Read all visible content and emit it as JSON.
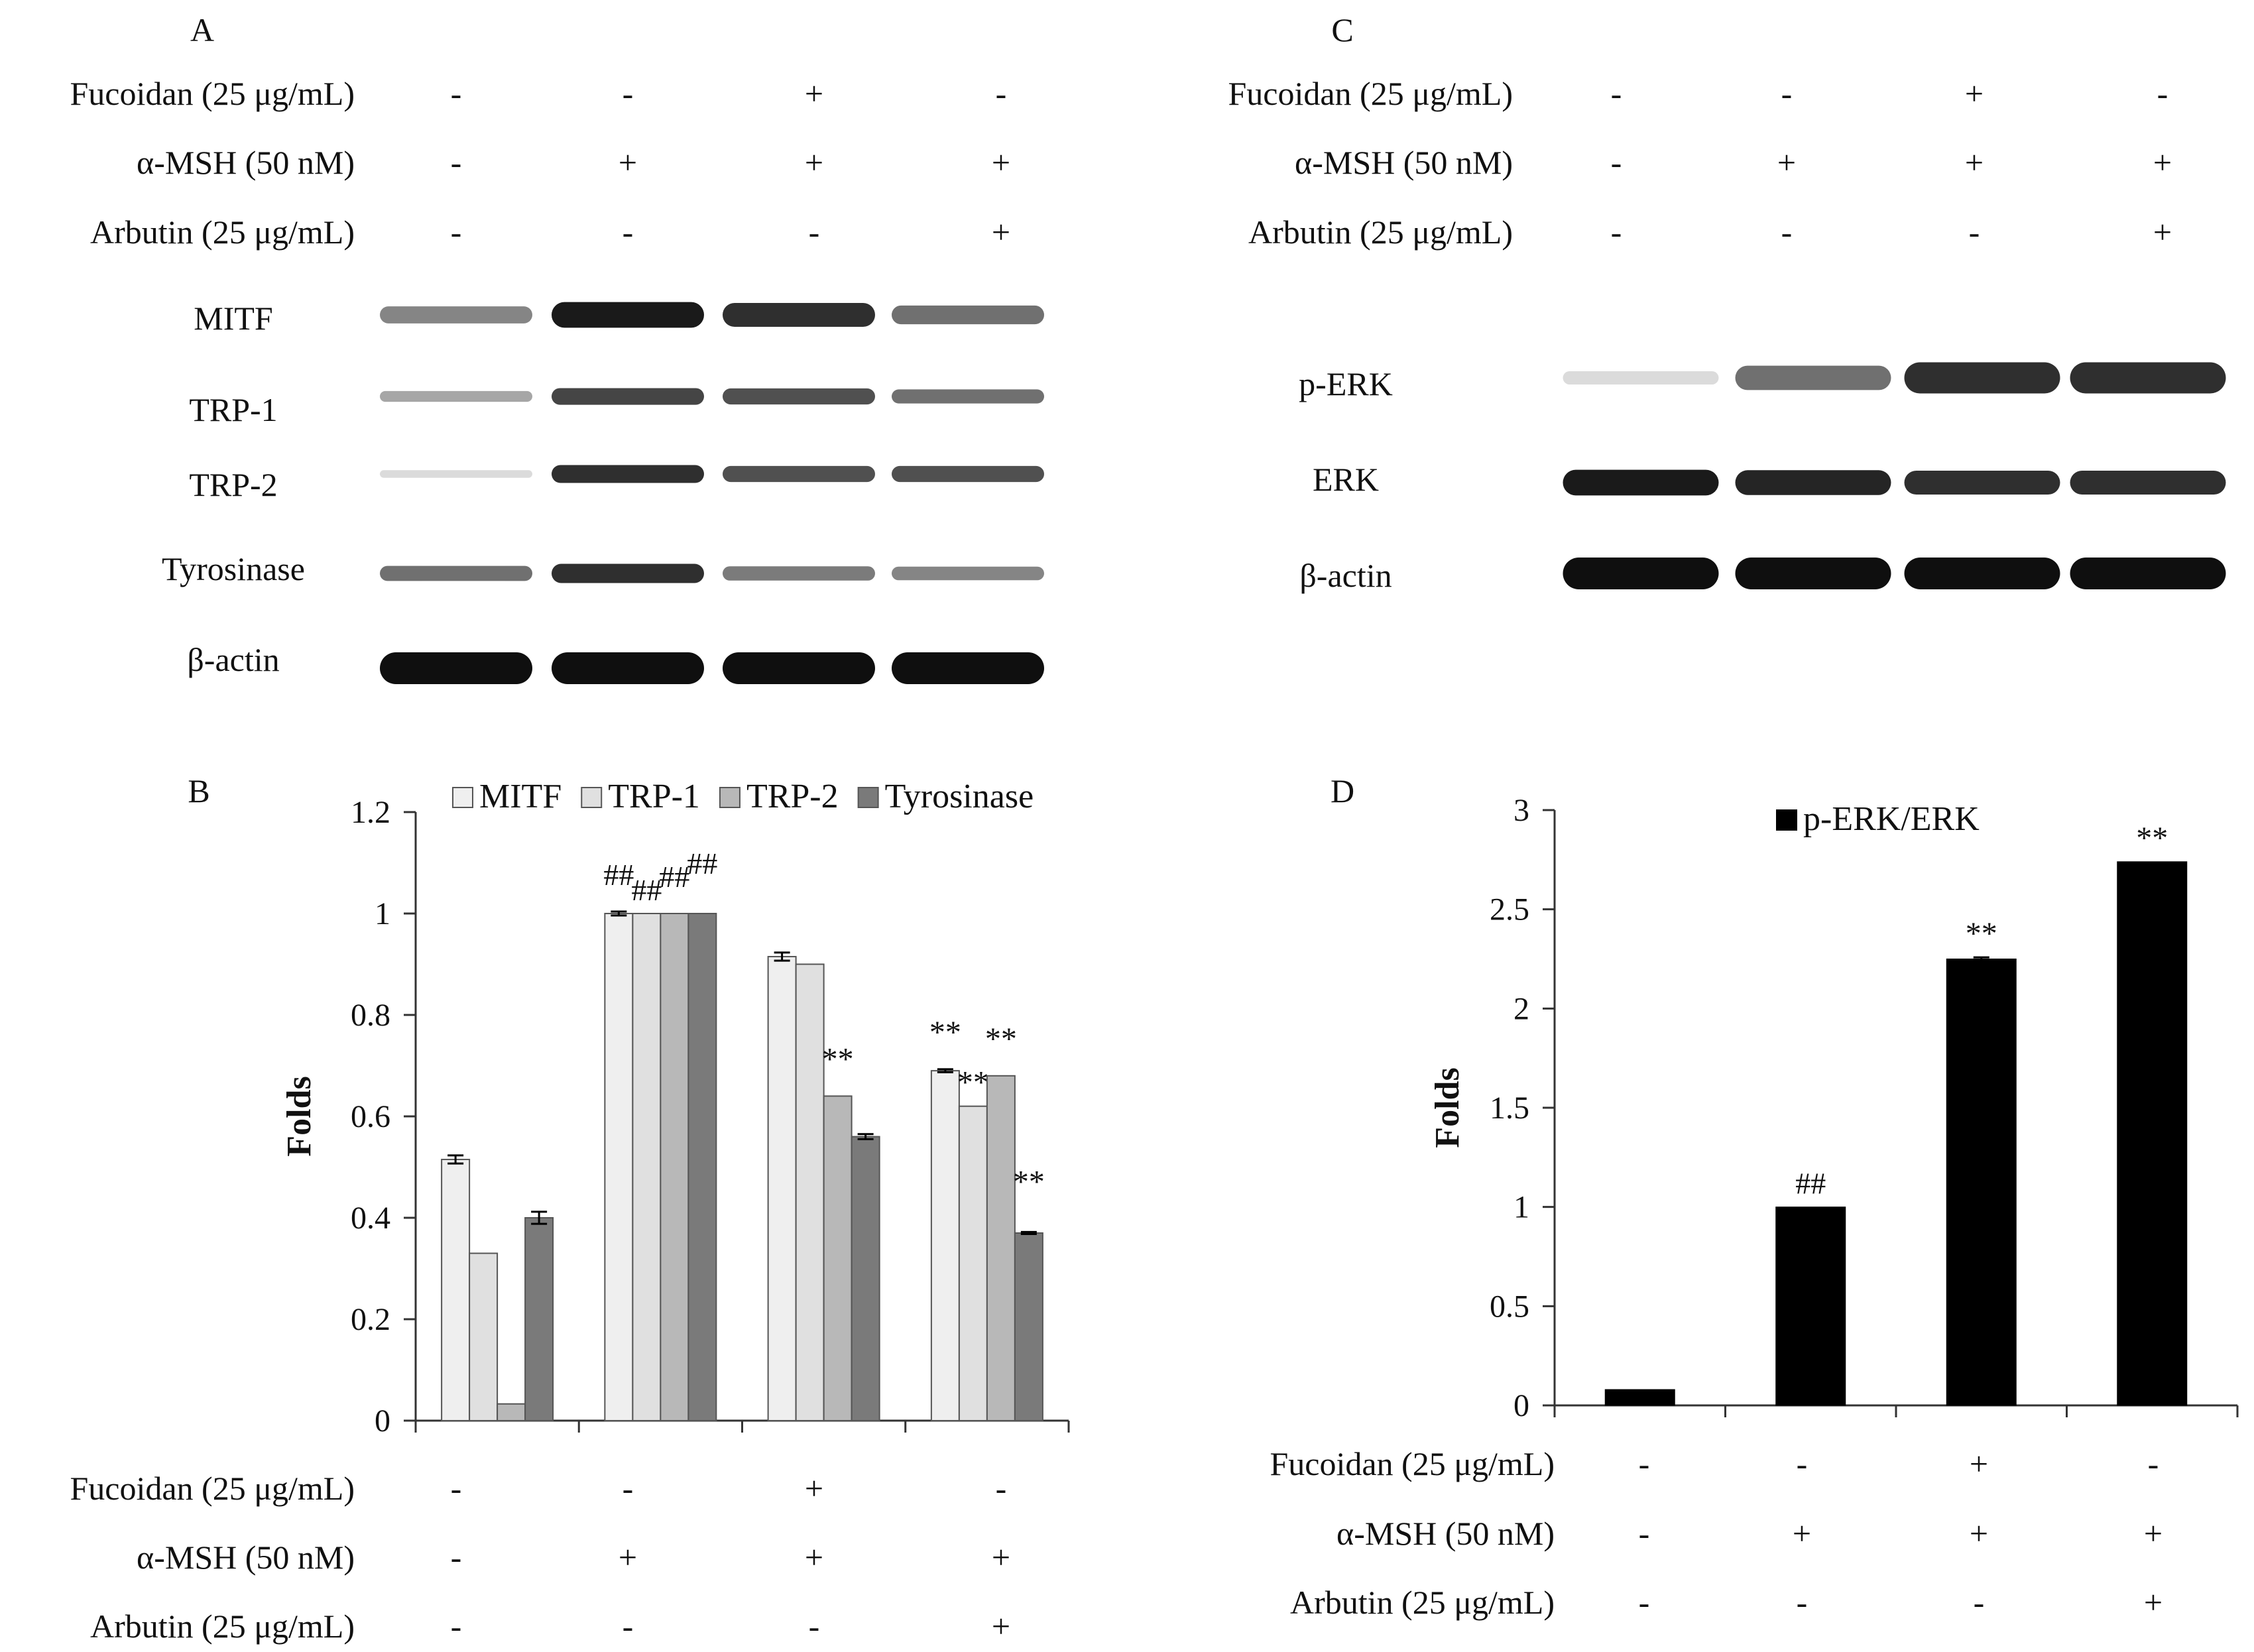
{
  "panel_labels": {
    "a": "A",
    "b": "B",
    "c": "C",
    "d": "D"
  },
  "treatments": {
    "rows": [
      {
        "label": "Fucoidan (25 μg/mL)",
        "signs": [
          "-",
          "-",
          "+",
          "-"
        ]
      },
      {
        "label": "α-MSH (50 nM)",
        "signs": [
          "-",
          "+",
          "+",
          "+"
        ]
      },
      {
        "label": "Arbutin (25 μg/mL)",
        "signs": [
          "-",
          "-",
          "-",
          "+"
        ]
      }
    ]
  },
  "blot_a": {
    "proteins": [
      "MITF",
      "TRP-1",
      "TRP-2",
      "Tyrosinase",
      "β-actin"
    ],
    "band_intensity": [
      [
        0.45,
        0.95,
        0.85,
        0.55
      ],
      [
        0.3,
        0.75,
        0.7,
        0.55
      ],
      [
        0.05,
        0.85,
        0.7,
        0.7
      ],
      [
        0.55,
        0.85,
        0.5,
        0.45
      ],
      [
        1.0,
        1.0,
        1.0,
        1.0
      ]
    ]
  },
  "blot_c": {
    "proteins": [
      "p-ERK",
      "ERK",
      "β-actin"
    ],
    "band_intensity": [
      [
        0.05,
        0.55,
        0.85,
        0.85
      ],
      [
        0.95,
        0.9,
        0.85,
        0.85
      ],
      [
        1.0,
        1.0,
        1.0,
        1.0
      ]
    ]
  },
  "chart_data": [
    {
      "panel": "B",
      "type": "bar",
      "ylabel": "Folds",
      "ylim": [
        0,
        1.2
      ],
      "yticks": [
        "0",
        "0.2",
        "0.4",
        "0.6",
        "0.8",
        "1",
        "1.2"
      ],
      "legend_position": "top",
      "groups": 4,
      "series": [
        {
          "name": "MITF",
          "color": "#efefef",
          "values": [
            0.515,
            1.0,
            0.915,
            0.69
          ],
          "errors": [
            0.008,
            0.004,
            0.008,
            0.003
          ],
          "marks": [
            "",
            "##",
            "",
            "**"
          ]
        },
        {
          "name": "TRP-1",
          "color": "#e0e0e0",
          "values": [
            0.33,
            1.0,
            0.9,
            0.62
          ],
          "errors": [
            0,
            0,
            0,
            0
          ],
          "marks": [
            "",
            "##",
            "",
            "**"
          ]
        },
        {
          "name": "TRP-2",
          "color": "#b8b8b8",
          "values": [
            0.033,
            1.0,
            0.64,
            0.68
          ],
          "errors": [
            0,
            0,
            0,
            0
          ],
          "marks": [
            "",
            "##",
            "**",
            "**"
          ]
        },
        {
          "name": "Tyrosinase",
          "color": "#7a7a7a",
          "values": [
            0.4,
            1.0,
            0.56,
            0.37
          ],
          "errors": [
            0.012,
            0,
            0.005,
            0.002
          ],
          "marks": [
            "",
            "##",
            "",
            "**"
          ]
        }
      ]
    },
    {
      "panel": "D",
      "type": "bar",
      "ylabel": "Folds",
      "ylim": [
        0,
        3
      ],
      "yticks": [
        "0",
        "0.5",
        "1",
        "1.5",
        "2",
        "2.5",
        "3"
      ],
      "legend_position": "top",
      "groups": 4,
      "series": [
        {
          "name": "p-ERK/ERK",
          "color": "#000000",
          "values": [
            0.08,
            1.0,
            2.25,
            2.74
          ],
          "errors": [
            0,
            0,
            0.008,
            0
          ],
          "marks": [
            "",
            "##",
            "**",
            "**"
          ]
        }
      ]
    }
  ]
}
